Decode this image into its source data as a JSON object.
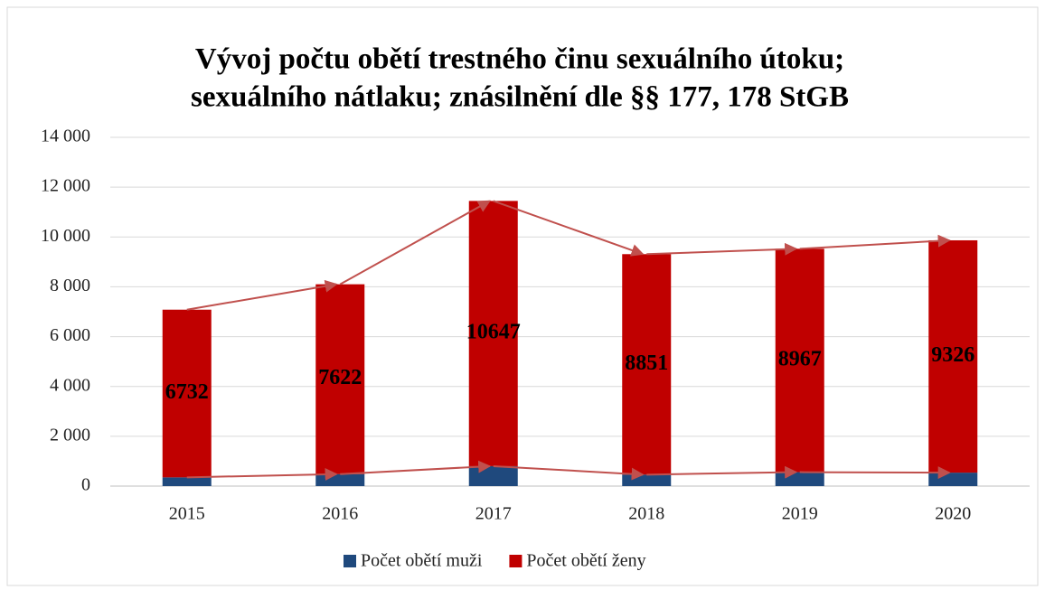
{
  "chart_data": {
    "type": "stacked_bar",
    "title": [
      "Vývoj počtu obětí trestného činu sexuálního útoku;",
      "sexuálního nátlaku; znásilnění dle §§ 177, 178 StGB"
    ],
    "categories": [
      "2015",
      "2016",
      "2017",
      "2018",
      "2019",
      "2020"
    ],
    "series": [
      {
        "name": "Počet obětí muži",
        "color": "#1f497d",
        "values": [
          350,
          480,
          800,
          460,
          560,
          540
        ]
      },
      {
        "name": "Počet obětí ženy",
        "color": "#c00000",
        "values": [
          6732,
          7622,
          10647,
          8851,
          8967,
          9326
        ]
      }
    ],
    "data_labels_series": 1,
    "ylim": [
      0,
      14000
    ],
    "yticks": [
      0,
      {
        "value": 2000,
        "label": "2 000"
      },
      {
        "value": 4000,
        "label": "4 000"
      },
      {
        "value": 6000,
        "label": "6 000"
      },
      {
        "value": 8000,
        "label": "8 000"
      },
      {
        "value": 10000,
        "label": "10 000"
      },
      {
        "value": 12000,
        "label": "12 000"
      },
      {
        "value": 14000,
        "label": "14 000"
      }
    ],
    "grid": true,
    "legend": "bottom",
    "trend_arrows": true,
    "arrow_color": "#c0504d"
  }
}
